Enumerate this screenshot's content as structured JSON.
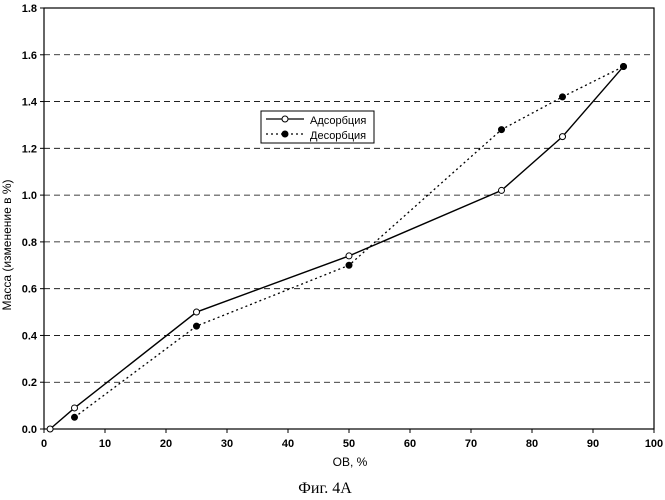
{
  "figure": {
    "caption": "Фиг. 4A"
  },
  "colors": {
    "line": "#000000",
    "grid": "#000000",
    "marker_fill_open": "#ffffff",
    "marker_fill_solid": "#000000"
  },
  "chart_data": {
    "type": "line",
    "title": "",
    "xlabel": "OB, %",
    "ylabel": "Масса (изменение в %)",
    "xlim": [
      0,
      100
    ],
    "ylim": [
      0,
      1.8
    ],
    "xticks": [
      0,
      10,
      20,
      30,
      40,
      50,
      60,
      70,
      80,
      90,
      100
    ],
    "yticks": [
      "0.0",
      "0.2",
      "0.4",
      "0.6",
      "0.8",
      "1.0",
      "1.2",
      "1.4",
      "1.6",
      "1.8"
    ],
    "grid": {
      "horizontal": true,
      "vertical": false,
      "style": "dashed"
    },
    "legend": {
      "placement": "upper-center"
    },
    "series": [
      {
        "name": "Адсорбция",
        "line_style": "solid",
        "marker": "open-circle",
        "x": [
          1,
          5,
          25,
          50,
          75,
          85,
          95
        ],
        "y": [
          0.0,
          0.09,
          0.5,
          0.74,
          1.02,
          1.25,
          1.55
        ]
      },
      {
        "name": "Десорбция",
        "line_style": "dotted",
        "marker": "filled-circle",
        "x": [
          5,
          25,
          50,
          75,
          85,
          95
        ],
        "y": [
          0.05,
          0.44,
          0.7,
          1.28,
          1.42,
          1.55
        ]
      }
    ]
  }
}
